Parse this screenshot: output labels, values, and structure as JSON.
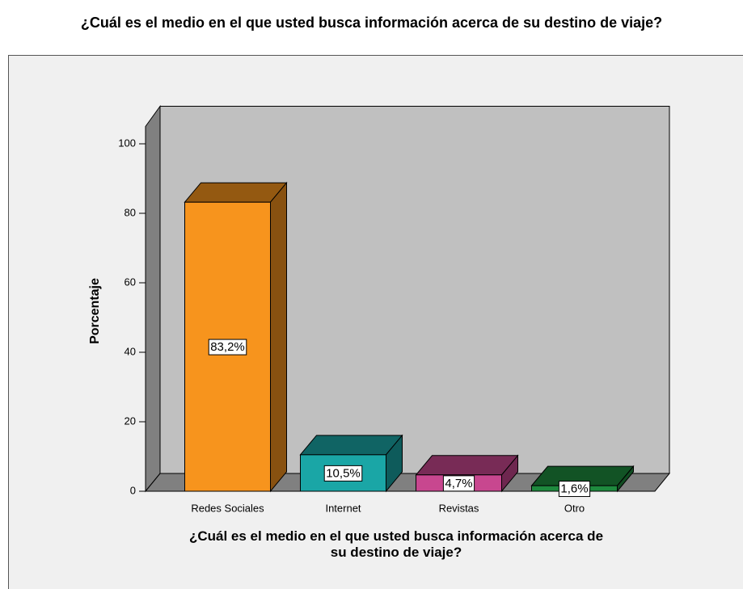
{
  "chart_data": {
    "type": "bar3d",
    "title": "¿Cuál es el medio en el que usted busca información acerca de su destino de viaje?",
    "x_label": "¿Cuál es el medio en el que usted busca información acerca de su destino de viaje?",
    "y_label": "Porcentaje",
    "categories": [
      "Redes Sociales",
      "Internet",
      "Revistas",
      "Otro"
    ],
    "values": [
      83.2,
      10.5,
      4.7,
      1.6
    ],
    "value_labels": [
      "83,2%",
      "10,5%",
      "4,7%",
      "1,6%"
    ],
    "colors": [
      "#f7941d",
      "#1aa6a6",
      "#c8478f",
      "#1e8a3e"
    ],
    "ylim": [
      0,
      105
    ],
    "yticks": [
      0,
      20,
      40,
      60,
      80,
      100
    ]
  }
}
